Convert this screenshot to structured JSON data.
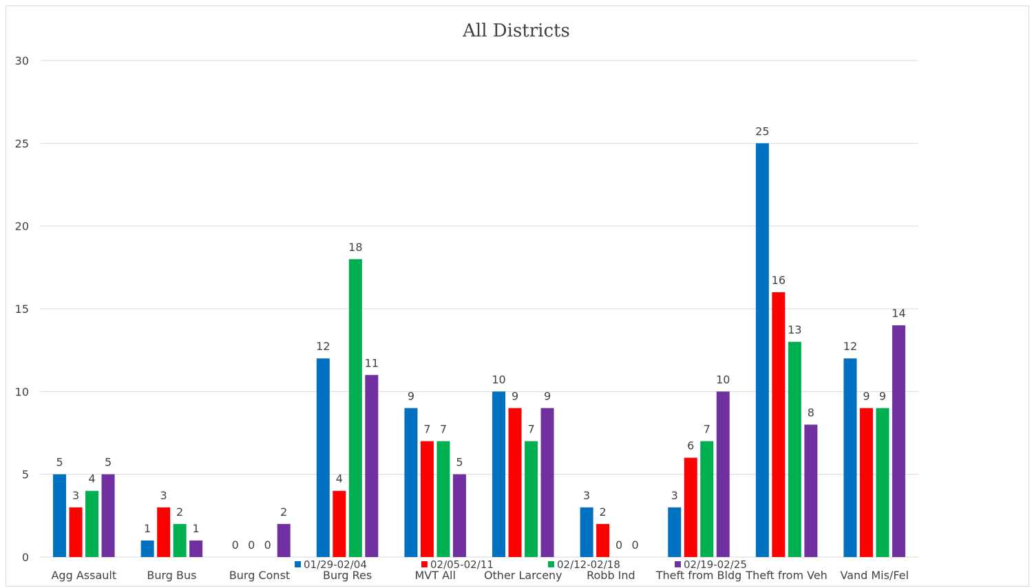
{
  "chart_data": {
    "type": "bar",
    "title": "All Districts",
    "xlabel": "",
    "ylabel": "",
    "ylim": [
      0,
      30
    ],
    "yticks": [
      0,
      5,
      10,
      15,
      20,
      25,
      30
    ],
    "grid": true,
    "legend_position": "bottom",
    "categories": [
      "Agg Assault",
      "Burg Bus",
      "Burg Const",
      "Burg Res",
      "MVT All",
      "Other Larceny",
      "Robb Ind",
      "Theft from Bldg",
      "Theft from Veh",
      "Vand Mis/Fel"
    ],
    "series": [
      {
        "name": "01/29-02/04",
        "color": "#0070c0",
        "values": [
          5,
          1,
          0,
          12,
          9,
          10,
          3,
          3,
          25,
          12
        ]
      },
      {
        "name": "02/05-02/11",
        "color": "#ff0000",
        "values": [
          3,
          3,
          0,
          4,
          7,
          9,
          2,
          6,
          16,
          9
        ]
      },
      {
        "name": "02/12-02/18",
        "color": "#00b050",
        "values": [
          4,
          2,
          0,
          18,
          7,
          7,
          0,
          7,
          13,
          9
        ]
      },
      {
        "name": "02/19-02/25",
        "color": "#7030a0",
        "values": [
          5,
          1,
          2,
          11,
          5,
          9,
          0,
          10,
          8,
          14
        ]
      }
    ]
  }
}
